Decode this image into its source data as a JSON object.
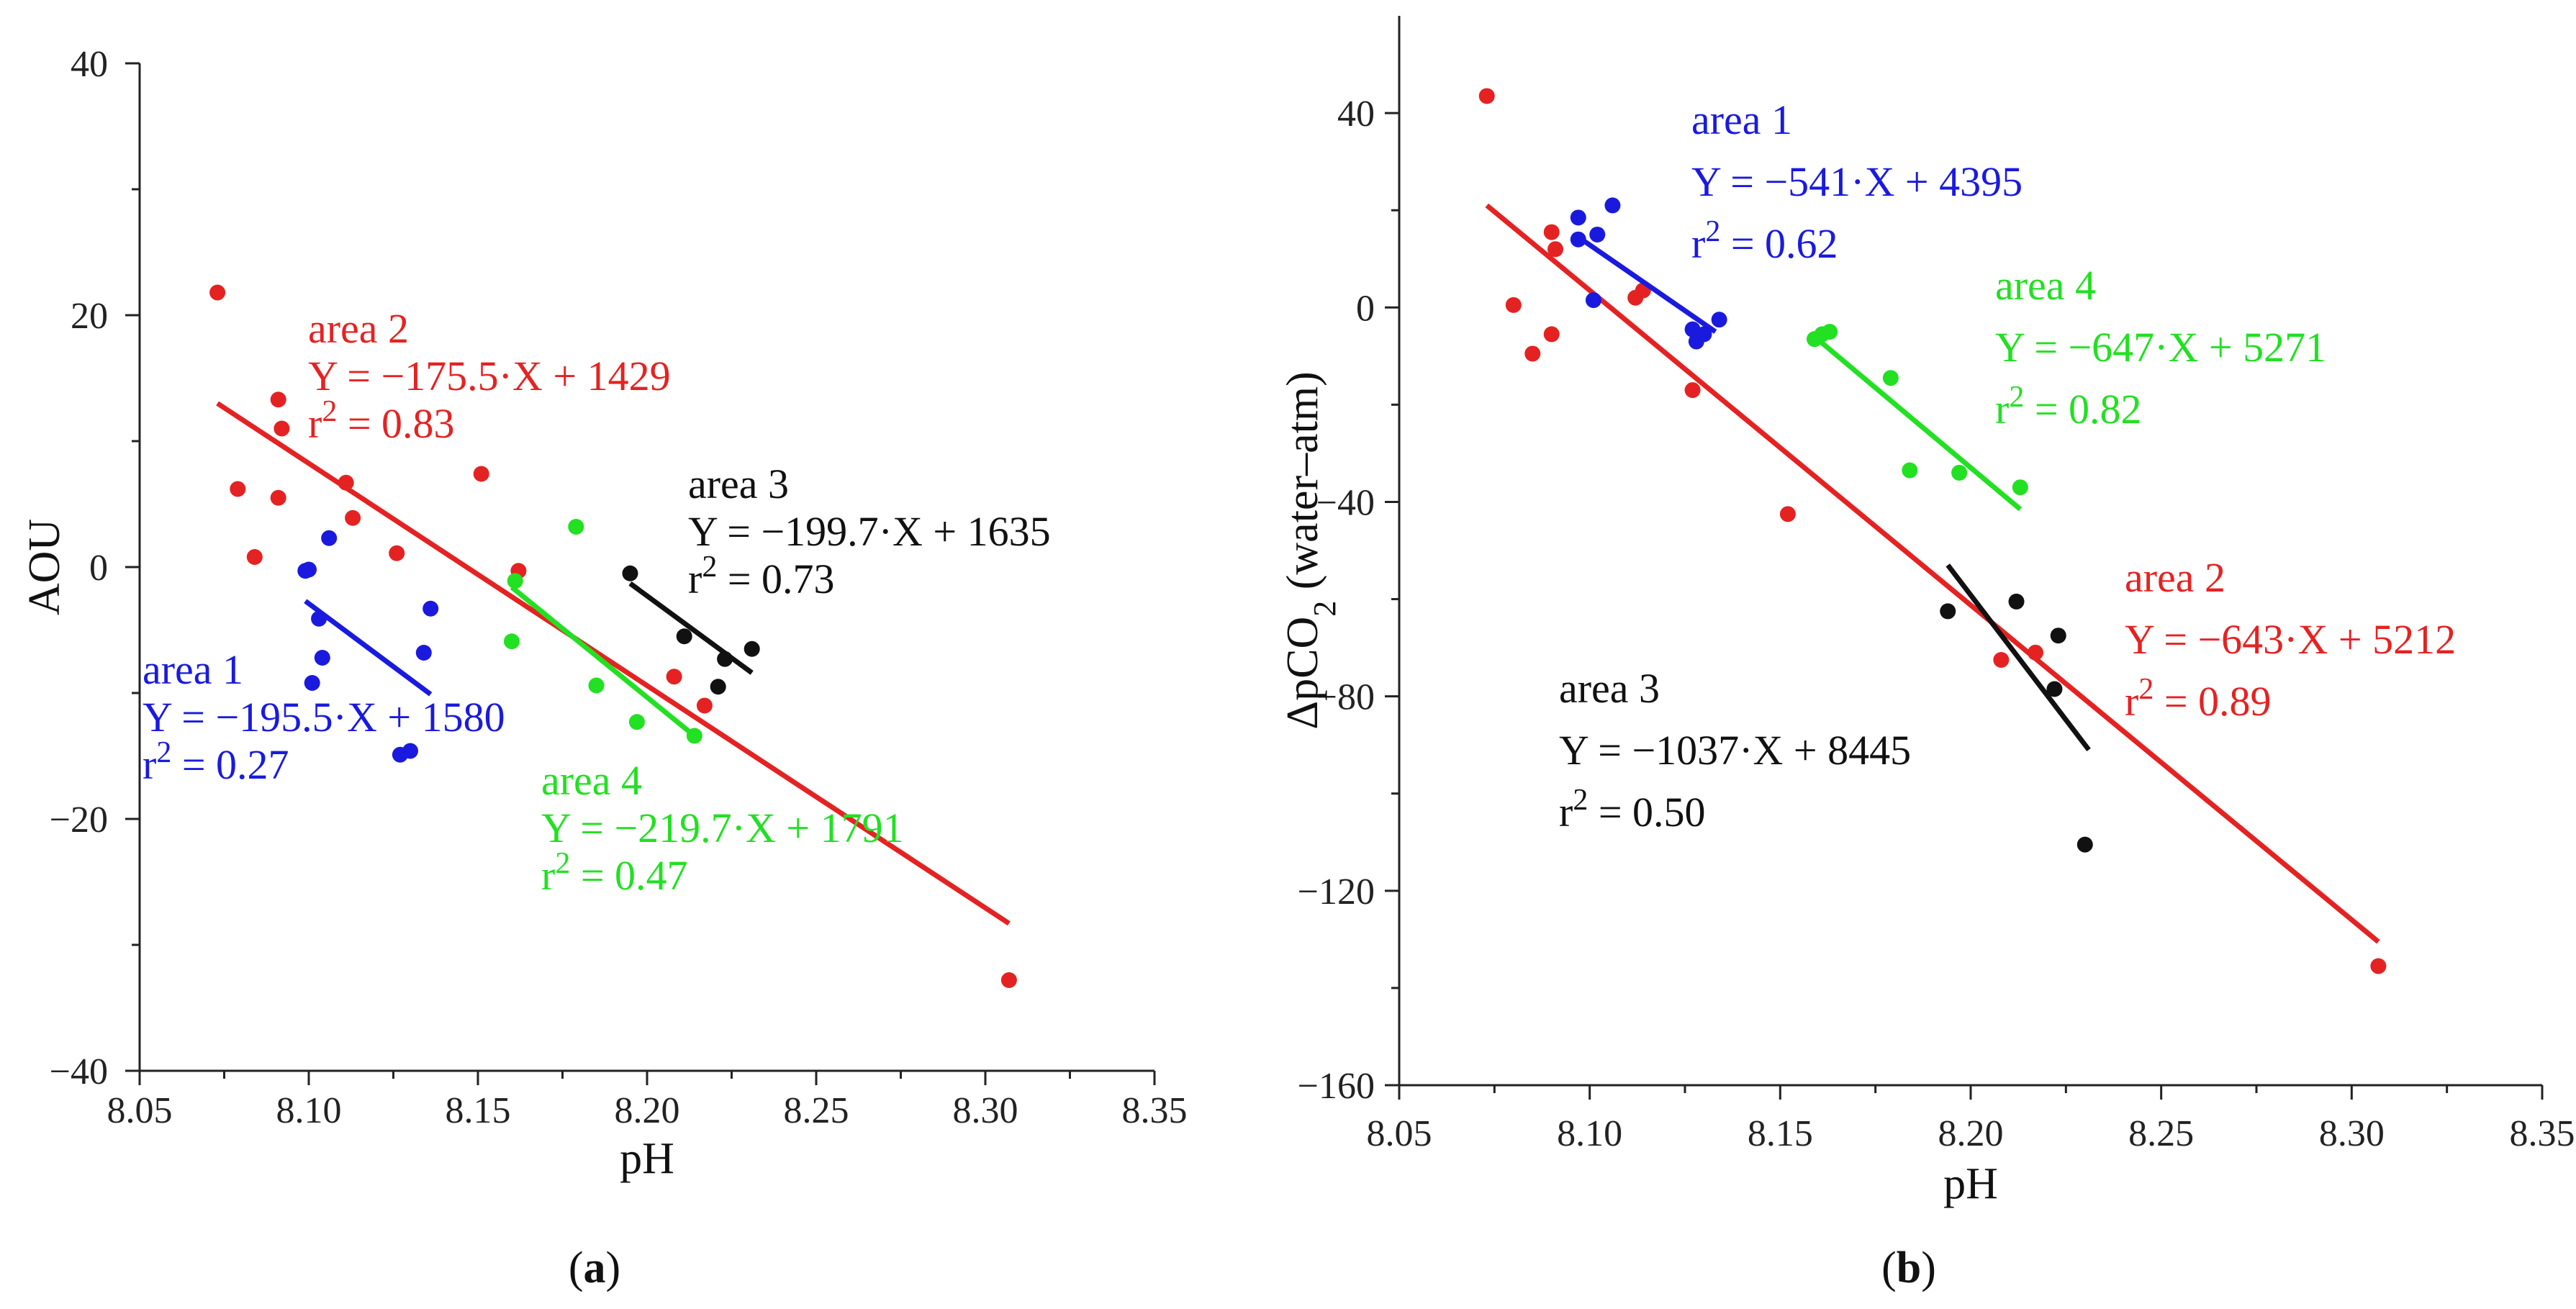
{
  "figure": {
    "panels": [
      {
        "label_open": "(",
        "label_letter": "a",
        "label_close": ")"
      },
      {
        "label_open": "(",
        "label_letter": "b",
        "label_close": ")"
      }
    ]
  },
  "chart_data": [
    {
      "type": "scatter",
      "title": "",
      "xlabel": "pH",
      "ylabel": "AOU",
      "xlim": [
        8.05,
        8.35
      ],
      "ylim": [
        -40,
        40
      ],
      "x_ticks": [
        "8.05",
        "8.10",
        "8.15",
        "8.20",
        "8.25",
        "8.30",
        "8.35"
      ],
      "y_ticks": [
        "−40",
        "−20",
        "0",
        "20",
        "40"
      ],
      "x_tick_values": [
        8.05,
        8.1,
        8.15,
        8.2,
        8.25,
        8.3,
        8.35
      ],
      "y_tick_values": [
        -40,
        -20,
        0,
        20,
        40
      ],
      "grid": false,
      "series": [
        {
          "name": "area 2",
          "color": "#e52222",
          "points": [
            [
              8.073,
              21.8
            ],
            [
              8.079,
              6.2
            ],
            [
              8.084,
              0.8
            ],
            [
              8.091,
              5.5
            ],
            [
              8.091,
              13.3
            ],
            [
              8.092,
              11.0
            ],
            [
              8.111,
              6.7
            ],
            [
              8.113,
              3.9
            ],
            [
              8.126,
              1.1
            ],
            [
              8.151,
              7.4
            ],
            [
              8.162,
              -0.3
            ],
            [
              8.208,
              -8.7
            ],
            [
              8.217,
              -11.0
            ],
            [
              8.307,
              -32.8
            ]
          ],
          "fit": {
            "x": [
              8.073,
              8.307
            ],
            "y": [
              13.0,
              -28.3
            ]
          },
          "label_lines": [
            "area 2",
            "Y = −175.5·X + 1429",
            "r",
            "2",
            " = 0.83"
          ]
        },
        {
          "name": "area 1",
          "color": "#1a1adf",
          "points": [
            [
              8.099,
              -0.3
            ],
            [
              8.1,
              -0.2
            ],
            [
              8.101,
              -9.2
            ],
            [
              8.103,
              -4.1
            ],
            [
              8.104,
              -7.2
            ],
            [
              8.106,
              2.3
            ],
            [
              8.127,
              -14.9
            ],
            [
              8.13,
              -14.6
            ],
            [
              8.134,
              -6.8
            ],
            [
              8.136,
              -3.3
            ]
          ],
          "fit": {
            "x": [
              8.099,
              8.136
            ],
            "y": [
              -2.7,
              -10.1
            ]
          },
          "label_lines": [
            "area 1",
            "Y = −195.5·X + 1580",
            "r",
            "2",
            " = 0.27"
          ]
        },
        {
          "name": "area 3",
          "color": "#111111",
          "points": [
            [
              8.195,
              -0.5
            ],
            [
              8.211,
              -5.5
            ],
            [
              8.221,
              -9.5
            ],
            [
              8.223,
              -7.3
            ],
            [
              8.231,
              -6.5
            ]
          ],
          "fit": {
            "x": [
              8.195,
              8.231
            ],
            "y": [
              -1.3,
              -8.4
            ]
          },
          "label_lines": [
            "area 3",
            "Y = −199.7·X + 1635",
            "r",
            "2",
            " = 0.73"
          ]
        },
        {
          "name": "area 4",
          "color": "#22e022",
          "points": [
            [
              8.16,
              -5.9
            ],
            [
              8.161,
              -1.1
            ],
            [
              8.179,
              3.2
            ],
            [
              8.185,
              -9.4
            ],
            [
              8.197,
              -12.3
            ],
            [
              8.214,
              -13.4
            ]
          ],
          "fit": {
            "x": [
              8.16,
              8.214
            ],
            "y": [
              -1.6,
              -13.4
            ]
          },
          "label_lines": [
            "area 4",
            "Y = −219.7·X + 1791",
            "r",
            "2",
            " = 0.47"
          ]
        }
      ]
    },
    {
      "type": "scatter",
      "title": "",
      "xlabel": "pH",
      "ylabel_parts": [
        "ΔpCO",
        "2",
        " (water–atm)"
      ],
      "xlim": [
        8.05,
        8.35
      ],
      "ylim": [
        -160,
        60
      ],
      "x_ticks": [
        "8.05",
        "8.10",
        "8.15",
        "8.20",
        "8.25",
        "8.30",
        "8.35"
      ],
      "y_ticks": [
        "−160",
        "−120",
        "−80",
        "−40",
        "0",
        "40"
      ],
      "x_tick_values": [
        8.05,
        8.1,
        8.15,
        8.2,
        8.25,
        8.3,
        8.35
      ],
      "y_tick_values": [
        -160,
        -120,
        -80,
        -40,
        0,
        40
      ],
      "grid": false,
      "series": [
        {
          "name": "area 2",
          "color": "#e52222",
          "points": [
            [
              8.073,
              43.5
            ],
            [
              8.08,
              0.5
            ],
            [
              8.085,
              -9.5
            ],
            [
              8.09,
              -5.5
            ],
            [
              8.09,
              15.5
            ],
            [
              8.091,
              12.0
            ],
            [
              8.112,
              2.0
            ],
            [
              8.114,
              3.5
            ],
            [
              8.127,
              -17.0
            ],
            [
              8.152,
              -42.5
            ],
            [
              8.208,
              -72.5
            ],
            [
              8.217,
              -71.0
            ],
            [
              8.307,
              -135.5
            ]
          ],
          "fit": {
            "x": [
              8.073,
              8.307
            ],
            "y": [
              21.0,
              -130.5
            ]
          },
          "label_lines": [
            "area 2",
            "Y = −643·X + 5212",
            "r",
            "2",
            " = 0.89"
          ]
        },
        {
          "name": "area 1",
          "color": "#1a1adf",
          "points": [
            [
              8.097,
              18.5
            ],
            [
              8.097,
              14.0
            ],
            [
              8.101,
              1.5
            ],
            [
              8.102,
              15.0
            ],
            [
              8.106,
              21.0
            ],
            [
              8.127,
              -4.5
            ],
            [
              8.128,
              -7.0
            ],
            [
              8.13,
              -5.5
            ],
            [
              8.134,
              -2.5
            ]
          ],
          "fit": {
            "x": [
              8.097,
              8.133
            ],
            "y": [
              14.5,
              -5.0
            ]
          },
          "label_lines": [
            "area 1",
            "Y = −541·X + 4395",
            "r",
            "2",
            " = 0.62"
          ]
        },
        {
          "name": "area 3",
          "color": "#111111",
          "points": [
            [
              8.194,
              -62.5
            ],
            [
              8.212,
              -60.5
            ],
            [
              8.222,
              -78.5
            ],
            [
              8.223,
              -67.5
            ],
            [
              8.23,
              -110.5
            ]
          ],
          "fit": {
            "x": [
              8.194,
              8.231
            ],
            "y": [
              -53.0,
              -91.0
            ]
          },
          "label_lines": [
            "area 3",
            "Y = −1037·X + 8445",
            "r",
            "2",
            " = 0.50"
          ]
        },
        {
          "name": "area 4",
          "color": "#22e022",
          "points": [
            [
              8.159,
              -6.5
            ],
            [
              8.161,
              -5.5
            ],
            [
              8.163,
              -5.0
            ],
            [
              8.179,
              -14.5
            ],
            [
              8.184,
              -33.5
            ],
            [
              8.197,
              -34.0
            ],
            [
              8.213,
              -37.0
            ]
          ],
          "fit": {
            "x": [
              8.159,
              8.213
            ],
            "y": [
              -6.0,
              -41.5
            ]
          },
          "label_lines": [
            "area 4",
            "Y = −647·X + 5271",
            "r",
            "2",
            "  = 0.82"
          ]
        }
      ]
    }
  ]
}
